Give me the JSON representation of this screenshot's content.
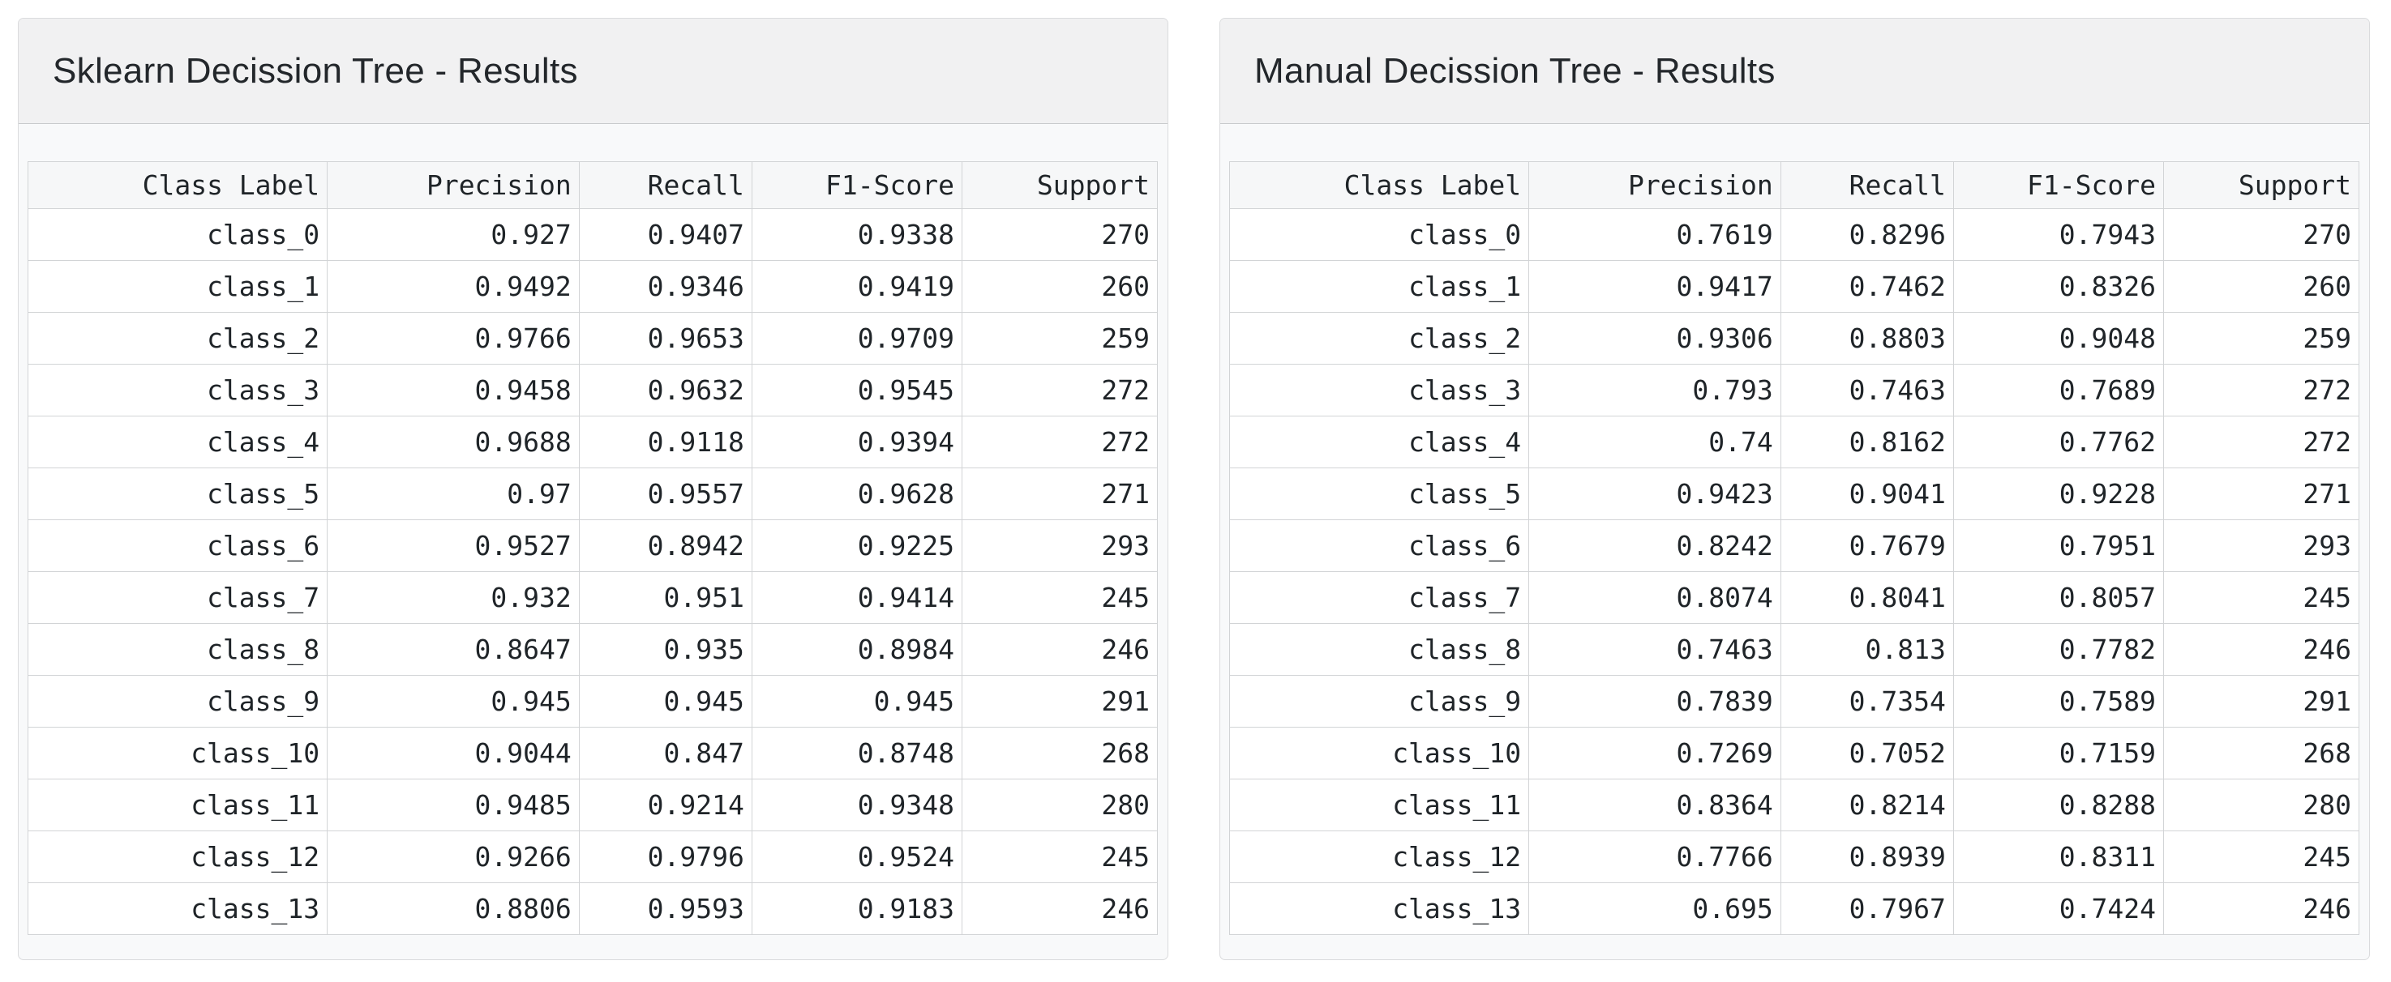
{
  "colors": {
    "page_bg": "#ffffff",
    "card_bg": "#f8f9fa",
    "card_border": "#dadbdd",
    "card_header_bg": "#f1f1f2",
    "card_header_border": "#c9cbcd",
    "table_border": "#d2d4d6",
    "table_header_bg": "#f6f7f8",
    "text": "#1f2428"
  },
  "panels": [
    {
      "id": "sklearn",
      "title": "Sklearn Decission Tree - Results",
      "table": {
        "columns": [
          "Class Label",
          "Precision",
          "Recall",
          "F1-Score",
          "Support"
        ],
        "rows": [
          [
            "class_0",
            "0.927",
            "0.9407",
            "0.9338",
            "270"
          ],
          [
            "class_1",
            "0.9492",
            "0.9346",
            "0.9419",
            "260"
          ],
          [
            "class_2",
            "0.9766",
            "0.9653",
            "0.9709",
            "259"
          ],
          [
            "class_3",
            "0.9458",
            "0.9632",
            "0.9545",
            "272"
          ],
          [
            "class_4",
            "0.9688",
            "0.9118",
            "0.9394",
            "272"
          ],
          [
            "class_5",
            "0.97",
            "0.9557",
            "0.9628",
            "271"
          ],
          [
            "class_6",
            "0.9527",
            "0.8942",
            "0.9225",
            "293"
          ],
          [
            "class_7",
            "0.932",
            "0.951",
            "0.9414",
            "245"
          ],
          [
            "class_8",
            "0.8647",
            "0.935",
            "0.8984",
            "246"
          ],
          [
            "class_9",
            "0.945",
            "0.945",
            "0.945",
            "291"
          ],
          [
            "class_10",
            "0.9044",
            "0.847",
            "0.8748",
            "268"
          ],
          [
            "class_11",
            "0.9485",
            "0.9214",
            "0.9348",
            "280"
          ],
          [
            "class_12",
            "0.9266",
            "0.9796",
            "0.9524",
            "245"
          ],
          [
            "class_13",
            "0.8806",
            "0.9593",
            "0.9183",
            "246"
          ]
        ]
      }
    },
    {
      "id": "manual",
      "title": "Manual Decission Tree - Results",
      "table": {
        "columns": [
          "Class Label",
          "Precision",
          "Recall",
          "F1-Score",
          "Support"
        ],
        "rows": [
          [
            "class_0",
            "0.7619",
            "0.8296",
            "0.7943",
            "270"
          ],
          [
            "class_1",
            "0.9417",
            "0.7462",
            "0.8326",
            "260"
          ],
          [
            "class_2",
            "0.9306",
            "0.8803",
            "0.9048",
            "259"
          ],
          [
            "class_3",
            "0.793",
            "0.7463",
            "0.7689",
            "272"
          ],
          [
            "class_4",
            "0.74",
            "0.8162",
            "0.7762",
            "272"
          ],
          [
            "class_5",
            "0.9423",
            "0.9041",
            "0.9228",
            "271"
          ],
          [
            "class_6",
            "0.8242",
            "0.7679",
            "0.7951",
            "293"
          ],
          [
            "class_7",
            "0.8074",
            "0.8041",
            "0.8057",
            "245"
          ],
          [
            "class_8",
            "0.7463",
            "0.813",
            "0.7782",
            "246"
          ],
          [
            "class_9",
            "0.7839",
            "0.7354",
            "0.7589",
            "291"
          ],
          [
            "class_10",
            "0.7269",
            "0.7052",
            "0.7159",
            "268"
          ],
          [
            "class_11",
            "0.8364",
            "0.8214",
            "0.8288",
            "280"
          ],
          [
            "class_12",
            "0.7766",
            "0.8939",
            "0.8311",
            "245"
          ],
          [
            "class_13",
            "0.695",
            "0.7967",
            "0.7424",
            "246"
          ]
        ]
      }
    }
  ]
}
